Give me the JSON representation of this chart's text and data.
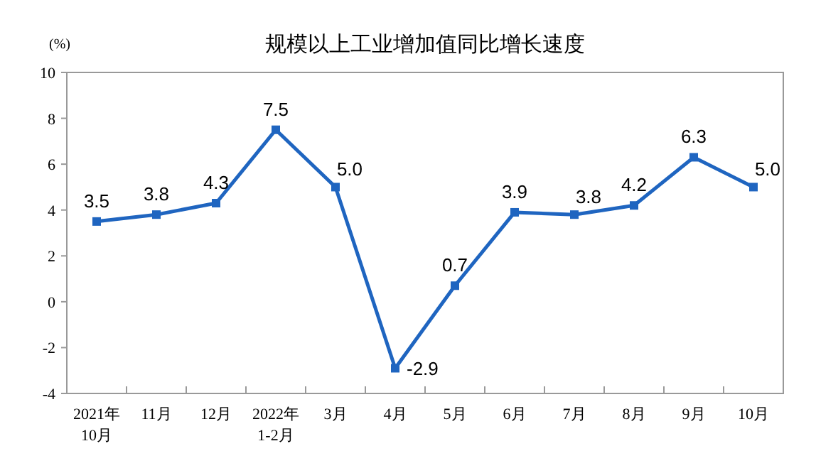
{
  "chart_data": {
    "type": "line",
    "title": "规模以上工业增加值同比增长速度",
    "ylabel": "(%)",
    "categories": [
      "2021年\n10月",
      "11月",
      "12月",
      "2022年\n1-2月",
      "3月",
      "4月",
      "5月",
      "6月",
      "7月",
      "8月",
      "9月",
      "10月"
    ],
    "series": [
      {
        "color": "#1f65c0",
        "values": [
          3.5,
          3.8,
          4.3,
          7.5,
          5.0,
          -2.9,
          0.7,
          3.9,
          3.8,
          4.2,
          6.3,
          5.0
        ],
        "value_labels": [
          "3.5",
          "3.8",
          "4.3",
          "7.5",
          "5.0",
          "-2.9",
          "0.7",
          "3.9",
          "3.8",
          "4.2",
          "6.3",
          "5.0"
        ]
      }
    ],
    "ylim": [
      -4,
      10
    ],
    "yticks": [
      -4,
      -2,
      0,
      2,
      4,
      6,
      8,
      10
    ],
    "marker": "square",
    "line_style": "solid",
    "grid": false
  }
}
